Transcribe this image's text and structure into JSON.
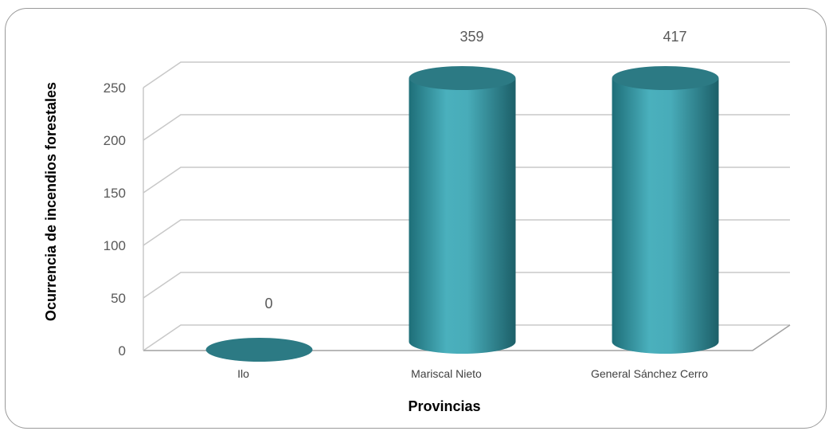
{
  "chart_data": {
    "type": "bar",
    "style": "3d-cylinder",
    "categories": [
      "Ilo",
      "Mariscal Nieto",
      "General Sánchez Cerro"
    ],
    "values": [
      0,
      359,
      417
    ],
    "data_labels": [
      "0",
      "359",
      "417"
    ],
    "xlabel": "Provincias",
    "ylabel": "Ocurrencia de incendios forestales",
    "ylim": [
      0,
      250
    ],
    "yticks": [
      0,
      50,
      100,
      150,
      200,
      250
    ],
    "grid": true,
    "legend": "none",
    "bar_color": "#3a9aa6"
  }
}
